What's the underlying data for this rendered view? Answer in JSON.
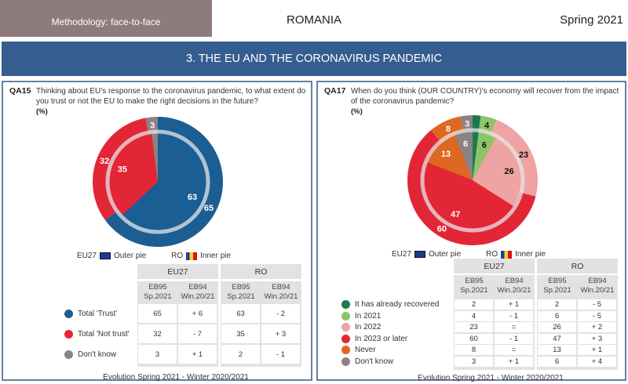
{
  "header": {
    "methodology": "Methodology: face-to-face",
    "country": "ROMANIA",
    "season": "Spring 2021",
    "section": "3. THE EU AND THE CORONAVIRUS PANDEMIC"
  },
  "legend": {
    "eu": "EU27",
    "outer": "Outer pie",
    "ro": "RO",
    "inner": "Inner pie"
  },
  "table_headers": {
    "eu": "EU27",
    "ro": "RO",
    "c1a": "EB95",
    "c1b": "Sp.2021",
    "c2a": "EB94",
    "c2b": "Win.20/21"
  },
  "footer": "Evolution Spring 2021 - Winter 2020/2021",
  "chart_data": [
    {
      "type": "pie",
      "id": "QA15",
      "title": "Thinking about EU's response to the coronavirus pandemic, to what extent do you trust or not the EU to make the right decisions in the future?",
      "unit": "(%)",
      "categories": [
        "Total 'Trust'",
        "Total 'Not trust'",
        "Don't know"
      ],
      "colors": [
        "#1a5e94",
        "#e32636",
        "#8c8285"
      ],
      "label_colors": [
        "#fff",
        "#fff",
        "#fff"
      ],
      "series": [
        {
          "name": "EU27 EB95 Sp.2021",
          "ring": "outer",
          "values": [
            65,
            32,
            3
          ]
        },
        {
          "name": "EU27 EB94 Win.20/21 change",
          "values": [
            "+ 6",
            "- 7",
            "+ 1"
          ]
        },
        {
          "name": "RO EB95 Sp.2021",
          "ring": "inner",
          "values": [
            63,
            35,
            2
          ]
        },
        {
          "name": "RO EB94 Win.20/21 change",
          "values": [
            "- 2",
            "+ 3",
            "- 1"
          ]
        }
      ]
    },
    {
      "type": "pie",
      "id": "QA17",
      "title": "When do you think (OUR COUNTRY)'s economy will recover from the impact of the coronavirus pandemic?",
      "unit": "(%)",
      "categories": [
        "It has already recovered",
        "In 2021",
        "In 2022",
        "In 2023 or later",
        "Never",
        "Don't know"
      ],
      "colors": [
        "#1a7a4c",
        "#8cc467",
        "#f0a3a3",
        "#e32636",
        "#de6722",
        "#8c8285"
      ],
      "label_colors": [
        "#fff",
        "#111",
        "#111",
        "#fff",
        "#fff",
        "#fff"
      ],
      "series": [
        {
          "name": "EU27 EB95 Sp.2021",
          "ring": "outer",
          "values": [
            2,
            4,
            23,
            60,
            8,
            3
          ]
        },
        {
          "name": "EU27 EB94 Win.20/21 change",
          "values": [
            "+ 1",
            "- 1",
            "=",
            "- 1",
            "=",
            "+ 1"
          ]
        },
        {
          "name": "RO EB95 Sp.2021",
          "ring": "inner",
          "values": [
            2,
            6,
            26,
            47,
            13,
            6
          ]
        },
        {
          "name": "RO EB94 Win.20/21 change",
          "values": [
            "- 5",
            "- 5",
            "+ 2",
            "+ 3",
            "+ 1",
            "+ 4"
          ]
        }
      ]
    }
  ]
}
